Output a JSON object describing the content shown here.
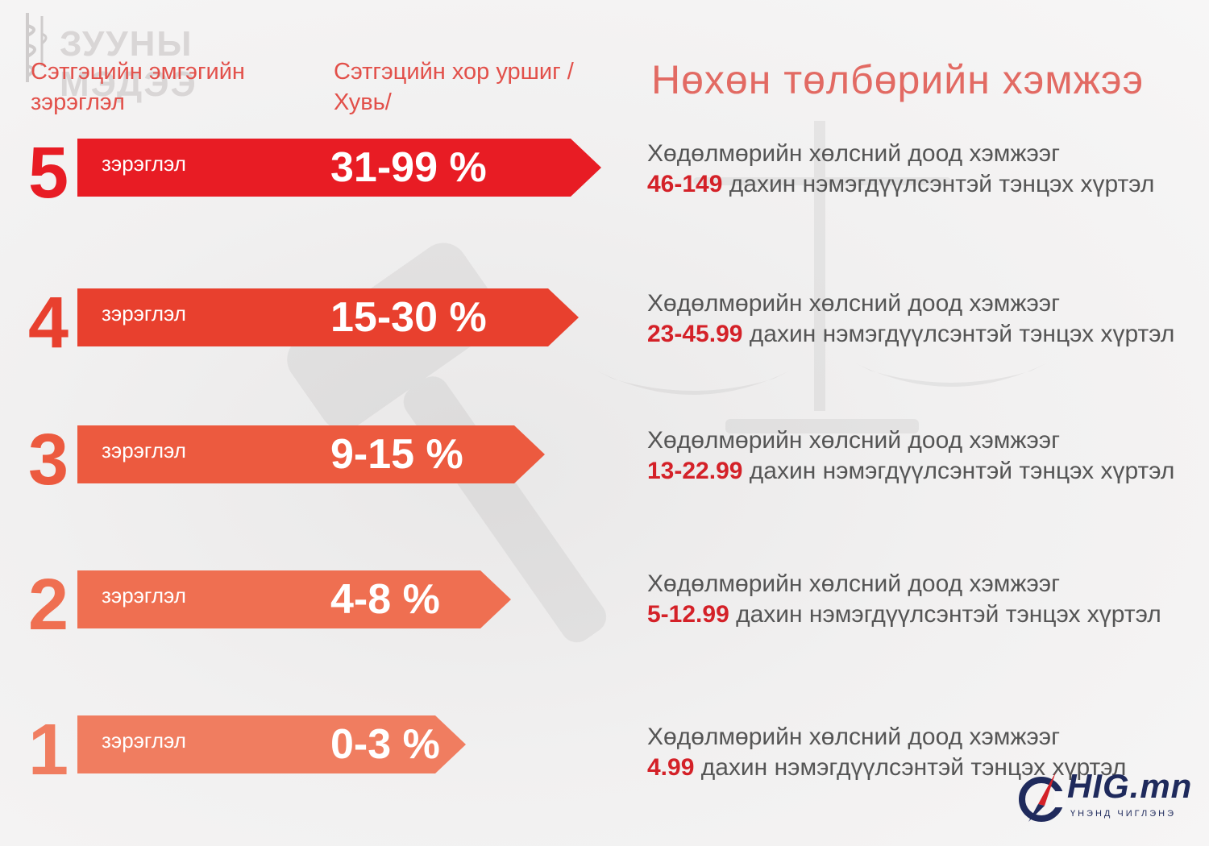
{
  "watermark": {
    "text": "ЗУУНЫ МЭДЭЭ"
  },
  "header": {
    "col1": "Сэтгэцийн эмгэгийн зэрэглэл",
    "col2": "Сэтгэцийн хор уршиг /Хувь/",
    "title": "Нөхөн төлбөрийн хэмжээ"
  },
  "rows": [
    {
      "level": "5",
      "label": "зэрэглэл",
      "pct": "31-99 %",
      "color": "#e81c24",
      "desc_line1": "Хөдөлмөрийн хөлсний доод хэмжээг",
      "desc_value": "46-149",
      "desc_rest": " дахин нэмэгдүүлсэнтэй тэнцэх хүртэл"
    },
    {
      "level": "4",
      "label": "зэрэглэл",
      "pct": "15-30 %",
      "color": "#e8402e",
      "desc_line1": "Хөдөлмөрийн хөлсний доод хэмжээг",
      "desc_value": "23-45.99",
      "desc_rest": " дахин нэмэгдүүлсэнтэй тэнцэх хүртэл"
    },
    {
      "level": "3",
      "label": "зэрэглэл",
      "pct": "9-15 %",
      "color": "#ec5a3f",
      "desc_line1": "Хөдөлмөрийн хөлсний доод хэмжээг",
      "desc_value": "13-22.99",
      "desc_rest": " дахин нэмэгдүүлсэнтэй тэнцэх хүртэл"
    },
    {
      "level": "2",
      "label": "зэрэглэл",
      "pct": "4-8 %",
      "color": "#ef6f51",
      "desc_line1": "Хөдөлмөрийн хөлсний доод хэмжээг",
      "desc_value": "5-12.99",
      "desc_rest": " дахин нэмэгдүүлсэнтэй тэнцэх хүртэл"
    },
    {
      "level": "1",
      "label": "зэрэглэл",
      "pct": "0-3 %",
      "color": "#f07d60",
      "desc_line1": "Хөдөлмөрийн хөлсний доод хэмжээг",
      "desc_value": "4.99",
      "desc_rest": " дахин нэмэгдүүлсэнтэй тэнцэх хүртэл"
    }
  ],
  "logo": {
    "text": "HIG.mn",
    "subtitle": "ҮНЭНД ЧИГЛЭНЭ"
  }
}
